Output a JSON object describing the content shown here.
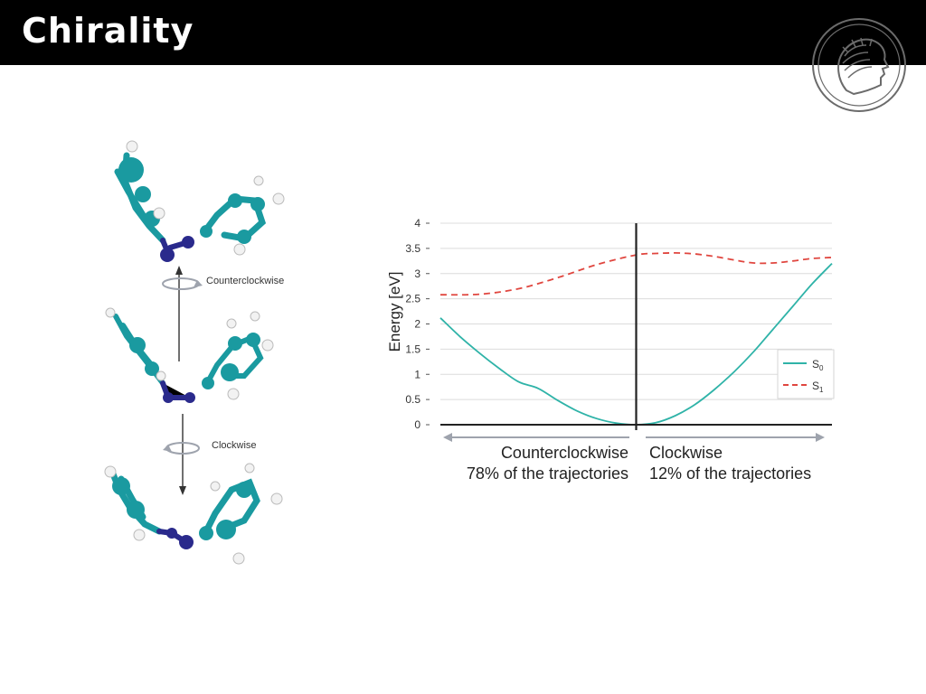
{
  "title": "Chirality",
  "colors": {
    "carbon": "#1a9aa0",
    "nitrogen": "#2a2a8c",
    "hydrogen": "#f2f2f2",
    "s0_line": "#2fb3a8",
    "s1_line": "#e0463f",
    "arrow_gray": "#9ea3ad"
  },
  "icons": [
    "rotation-arrow-icon",
    "max-planck-logo"
  ],
  "molecule_diagram": {
    "label_top": "Counterclockwise",
    "label_bottom": "Clockwise"
  },
  "chart_data": {
    "type": "line",
    "ylabel": "Energy [eV]",
    "xlabel": "",
    "ylim": [
      0,
      4
    ],
    "yticks": [
      "0",
      "0.5",
      "1",
      "1.5",
      "2",
      "2.5",
      "3",
      "3.5",
      "4"
    ],
    "xlim": [
      -1,
      1
    ],
    "grid": true,
    "legend_position": "right",
    "series": [
      {
        "name": "S0",
        "name_base": "S",
        "name_sub": "0",
        "style": "solid",
        "color": "#2fb3a8",
        "x": [
          -1,
          -0.9,
          -0.8,
          -0.7,
          -0.6,
          -0.5,
          -0.4,
          -0.3,
          -0.2,
          -0.1,
          0,
          0.1,
          0.2,
          0.3,
          0.4,
          0.5,
          0.6,
          0.7,
          0.8,
          0.9,
          1
        ],
        "y": [
          2.12,
          1.75,
          1.42,
          1.12,
          0.85,
          0.72,
          0.48,
          0.27,
          0.12,
          0.03,
          0,
          0.04,
          0.18,
          0.4,
          0.7,
          1.05,
          1.45,
          1.9,
          2.35,
          2.8,
          3.2
        ]
      },
      {
        "name": "S1",
        "name_base": "S",
        "name_sub": "1",
        "style": "dashed",
        "color": "#e0463f",
        "x": [
          -1,
          -0.8,
          -0.6,
          -0.4,
          -0.2,
          0,
          0.1,
          0.2,
          0.3,
          0.4,
          0.5,
          0.6,
          0.7,
          0.8,
          0.9,
          1
        ],
        "y": [
          2.58,
          2.59,
          2.7,
          2.92,
          3.18,
          3.37,
          3.4,
          3.41,
          3.39,
          3.34,
          3.27,
          3.21,
          3.21,
          3.25,
          3.3,
          3.32
        ]
      }
    ],
    "annotations": {
      "left_direction": "Counterclockwise",
      "left_percent": "78% of the trajectories",
      "right_direction": "Clockwise",
      "right_percent": "12% of the trajectories"
    }
  }
}
